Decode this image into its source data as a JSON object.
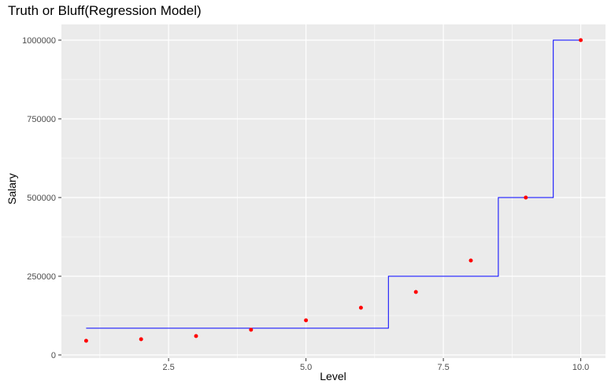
{
  "chart_data": {
    "type": "scatter",
    "title": "Truth or Bluff(Regression Model)",
    "xlabel": "Level",
    "ylabel": "Salary",
    "xlim": [
      0.55,
      10.45
    ],
    "ylim": [
      -10000,
      1050000
    ],
    "x_ticks": [
      2.5,
      5.0,
      7.5,
      10.0
    ],
    "x_tick_labels": [
      "2.5",
      "5.0",
      "7.5",
      "10.0"
    ],
    "y_ticks": [
      0,
      250000,
      500000,
      750000,
      1000000
    ],
    "y_tick_labels": [
      "0",
      "250000",
      "500000",
      "750000",
      "1000000"
    ],
    "grid": true,
    "series": [
      {
        "kind": "points",
        "color": "#ff0000",
        "points": [
          {
            "x": 1,
            "y": 45000
          },
          {
            "x": 2,
            "y": 50000
          },
          {
            "x": 3,
            "y": 60000
          },
          {
            "x": 4,
            "y": 80000
          },
          {
            "x": 5,
            "y": 110000
          },
          {
            "x": 6,
            "y": 150000
          },
          {
            "x": 7,
            "y": 200000
          },
          {
            "x": 8,
            "y": 300000
          },
          {
            "x": 9,
            "y": 500000
          },
          {
            "x": 10,
            "y": 1000000
          }
        ]
      },
      {
        "kind": "step-line",
        "color": "#0000ff",
        "points": [
          {
            "x": 1.0,
            "y": 85000
          },
          {
            "x": 6.5,
            "y": 85000
          },
          {
            "x": 6.5,
            "y": 250000
          },
          {
            "x": 8.5,
            "y": 250000
          },
          {
            "x": 8.5,
            "y": 500000
          },
          {
            "x": 9.5,
            "y": 500000
          },
          {
            "x": 9.5,
            "y": 1000000
          },
          {
            "x": 10.0,
            "y": 1000000
          }
        ]
      }
    ]
  }
}
